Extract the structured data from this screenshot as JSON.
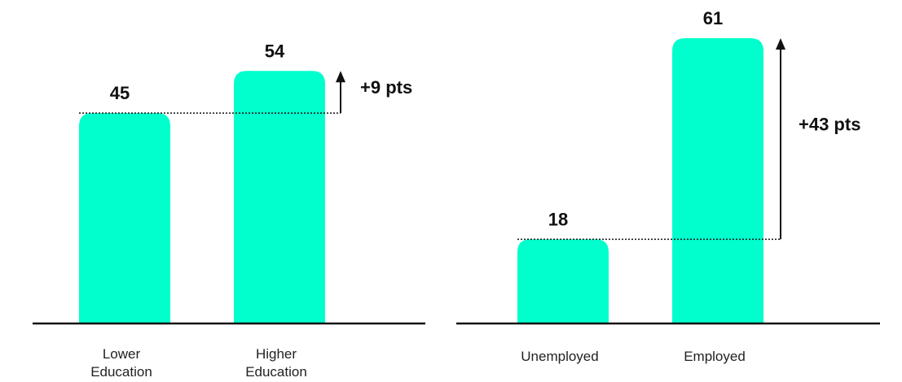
{
  "chart_data": [
    {
      "type": "bar",
      "categories": [
        "Lower Education",
        "Higher Education"
      ],
      "values": [
        45,
        54
      ],
      "title": "",
      "xlabel": "",
      "ylabel": "",
      "ylim": [
        0,
        61
      ],
      "grid": false,
      "annotations": [
        {
          "text": "+9 pts",
          "from_value": 45,
          "to_value": 54,
          "style": "dotted-baseline-with-up-arrow"
        }
      ],
      "bar_color": "#00FFCC"
    },
    {
      "type": "bar",
      "categories": [
        "Unemployed",
        "Employed"
      ],
      "values": [
        18,
        61
      ],
      "title": "",
      "xlabel": "",
      "ylabel": "",
      "ylim": [
        0,
        61
      ],
      "grid": false,
      "annotations": [
        {
          "text": "+43 pts",
          "from_value": 18,
          "to_value": 61,
          "style": "dotted-baseline-with-up-arrow"
        }
      ],
      "bar_color": "#00FFCC"
    }
  ],
  "colors": {
    "bar": "#00FFCC",
    "axis": "#111111",
    "text": "#111111"
  }
}
